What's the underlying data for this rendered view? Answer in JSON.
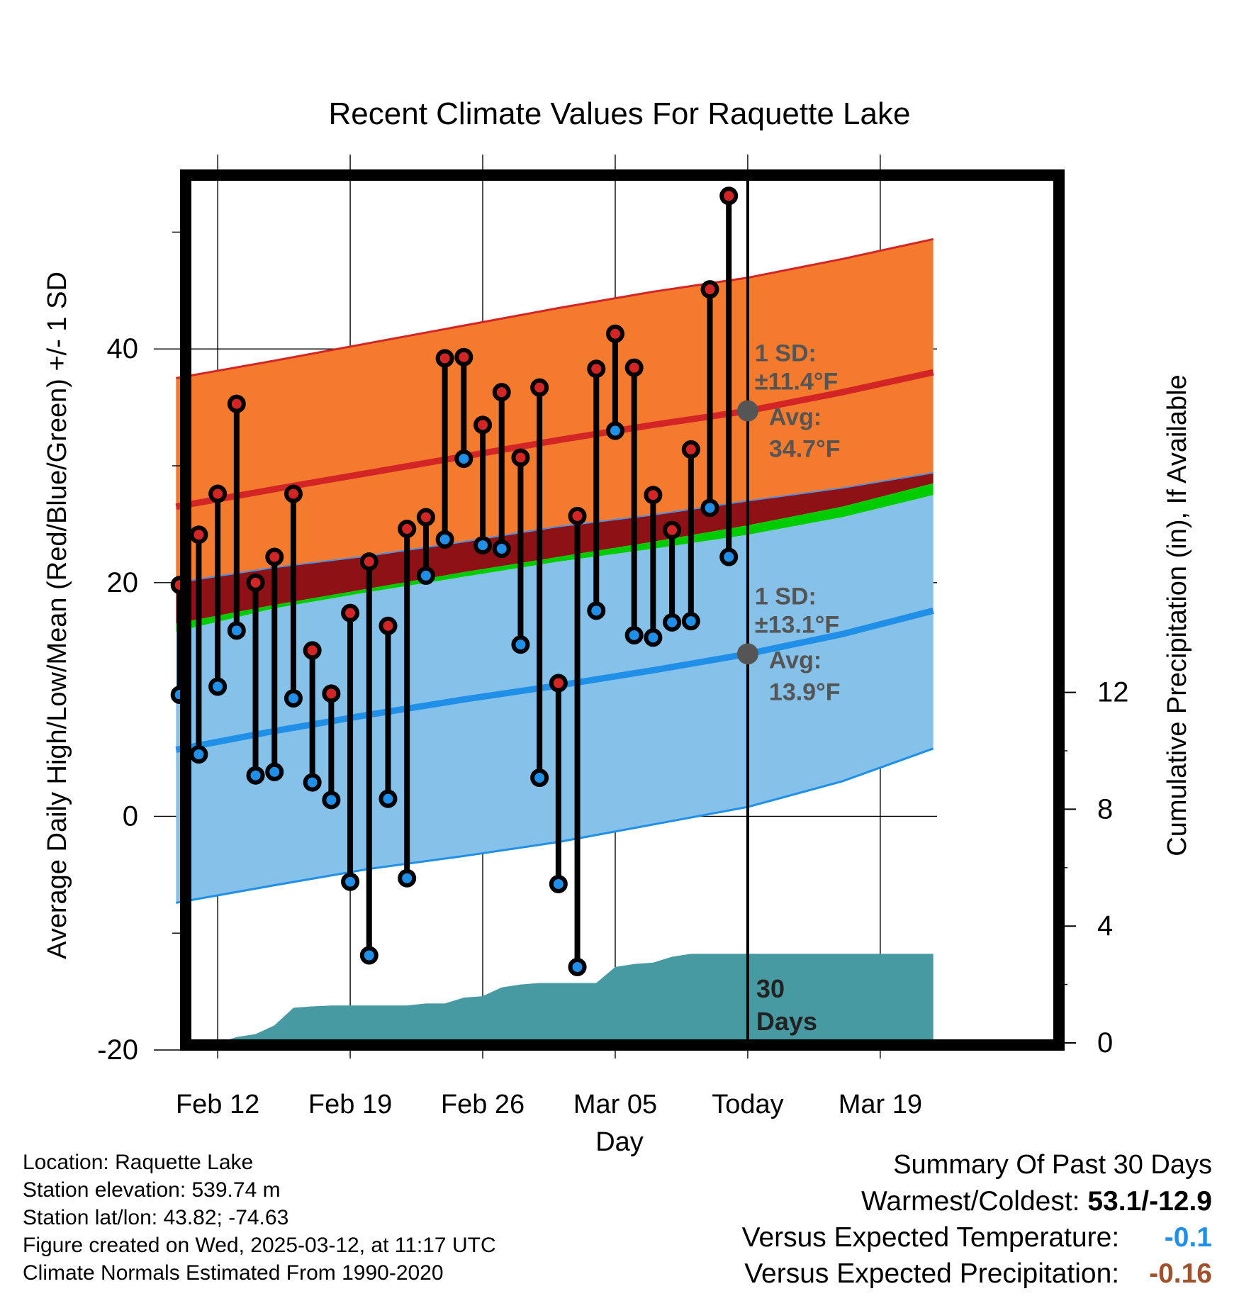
{
  "chart_data": {
    "type": "line",
    "title": "Recent Climate Values For Raquette Lake",
    "xlabel": "Day",
    "ylabel_left": "Average Daily High/Low/Mean (Red/Blue/Green) +/- 1 SD",
    "ylabel_right": "Cumulative Precipitation (in), If Available",
    "x_tick_labels": [
      "Feb 12",
      "Feb 19",
      "Feb 26",
      "Mar 05",
      "Today",
      "Mar 19"
    ],
    "x_tick_days": [
      2,
      9,
      16,
      23,
      30,
      37
    ],
    "xlim_days": [
      -1,
      40
    ],
    "ylim": [
      -20,
      55
    ],
    "yticks": [
      -20,
      0,
      20,
      40
    ],
    "y_tick_labels": [
      "-20",
      "0",
      "20",
      "40"
    ],
    "ylim_right": [
      0,
      30
    ],
    "yticks_right": [
      0,
      4,
      8,
      12
    ],
    "y_right_tick_labels": [
      "0",
      "4",
      "8",
      "12"
    ],
    "grid": true,
    "today_marker_label": "30\nDays",
    "normals": {
      "day": [
        -0.2,
        5,
        10,
        15,
        20,
        25,
        30,
        35,
        39.8
      ],
      "high_avg": [
        26.5,
        28.0,
        29.4,
        30.8,
        32.2,
        33.5,
        34.7,
        36.3,
        38.0
      ],
      "high_plus_sd": [
        37.5,
        39.0,
        40.5,
        42.0,
        43.5,
        44.9,
        46.1,
        47.7,
        49.4
      ],
      "high_minus_sd": [
        20.0,
        21.3,
        22.3,
        23.5,
        24.8,
        25.8,
        27.0,
        28.1,
        29.4
      ],
      "low_avg": [
        5.7,
        7.3,
        8.7,
        10.0,
        11.2,
        12.5,
        13.9,
        15.6,
        17.6
      ],
      "low_plus_sd": [
        15.8,
        17.8,
        19.2,
        20.5,
        21.8,
        22.9,
        24.1,
        25.6,
        27.5
      ],
      "low_minus_sd": [
        -7.4,
        -5.9,
        -4.5,
        -3.4,
        -2.2,
        -0.7,
        0.8,
        3.0,
        5.8
      ],
      "mean_avg": [
        16.5,
        18.1,
        19.5,
        20.9,
        22.2,
        23.5,
        24.9,
        26.5,
        28.5
      ],
      "mean_plus_sd": [
        20.0,
        21.3,
        22.3,
        23.5,
        24.8,
        25.8,
        27.0,
        28.1,
        29.4
      ],
      "mean_minus_sd": [
        15.8,
        17.8,
        19.2,
        20.5,
        21.8,
        22.9,
        24.1,
        25.6,
        27.5
      ]
    },
    "annotations": [
      {
        "sd_label": "1 SD:",
        "sd_value": "±11.4°F",
        "avg_label": "Avg:",
        "avg_value": "34.7°F",
        "day": 30,
        "value": 34.7
      },
      {
        "sd_label": "1 SD:",
        "sd_value": "±13.1°F",
        "avg_label": "Avg:",
        "avg_value": "13.9°F",
        "day": 30,
        "value": 13.9
      }
    ],
    "series": [
      {
        "name": "Daily High",
        "color": "#d42526",
        "days": [
          0,
          1,
          2,
          3,
          4,
          5,
          6,
          7,
          8,
          9,
          10,
          11,
          12,
          13,
          14,
          15,
          16,
          17,
          18,
          19,
          20,
          21,
          22,
          23,
          24,
          25,
          26,
          27,
          28,
          29
        ],
        "values": [
          19.8,
          24.1,
          27.6,
          35.3,
          20.0,
          22.2,
          27.6,
          14.2,
          10.5,
          17.4,
          21.8,
          16.3,
          24.6,
          25.6,
          39.2,
          39.3,
          33.5,
          36.3,
          30.7,
          36.7,
          11.4,
          25.7,
          38.3,
          41.3,
          38.4,
          27.5,
          24.5,
          31.4,
          45.1,
          53.1
        ]
      },
      {
        "name": "Daily Low",
        "color": "#1f8fe8",
        "days": [
          0,
          1,
          2,
          3,
          4,
          5,
          6,
          7,
          8,
          9,
          10,
          11,
          12,
          13,
          14,
          15,
          16,
          17,
          18,
          19,
          20,
          21,
          22,
          23,
          24,
          25,
          26,
          27,
          28,
          29
        ],
        "values": [
          10.4,
          5.3,
          11.1,
          15.9,
          3.5,
          3.8,
          10.1,
          2.9,
          1.4,
          -5.6,
          -11.9,
          1.5,
          -5.3,
          20.6,
          23.7,
          30.6,
          23.2,
          22.9,
          14.7,
          3.3,
          -5.8,
          -12.9,
          17.6,
          33.0,
          15.5,
          15.3,
          16.6,
          16.7,
          26.4,
          22.2
        ]
      },
      {
        "name": "Cumulative Precipitation",
        "days": [
          -0.2,
          0.5,
          1,
          2,
          3,
          4,
          5,
          6,
          7,
          8,
          9,
          10,
          11,
          12,
          13,
          14,
          15,
          16,
          17,
          18,
          19,
          20,
          21,
          22,
          23,
          24,
          25,
          26,
          27,
          28,
          29,
          30,
          39.8
        ],
        "values": [
          0,
          0,
          0,
          0,
          0.2,
          0.3,
          0.6,
          1.2,
          1.25,
          1.28,
          1.28,
          1.28,
          1.28,
          1.28,
          1.35,
          1.35,
          1.55,
          1.6,
          1.9,
          2.0,
          2.05,
          2.05,
          2.05,
          2.05,
          2.6,
          2.7,
          2.75,
          2.95,
          3.05,
          3.05,
          3.05,
          3.05,
          3.05
        ]
      }
    ]
  },
  "footer": {
    "location": "Location: Raquette Lake",
    "elevation": "Station elevation: 539.74 m",
    "latlon": "Station lat/lon: 43.82; -74.63",
    "created": "Figure created on Wed, 2025-03-12, at 11:17 UTC",
    "normals": "Climate Normals Estimated From 1990-2020"
  },
  "summary": {
    "heading": "Summary Of Past 30 Days",
    "warm_cold_label": "Warmest/Coldest:",
    "warm_cold_value": "53.1/-12.9",
    "temp_label": "Versus Expected Temperature:",
    "temp_value": "-0.1",
    "temp_color": "#1f8fe8",
    "precip_label": "Versus Expected Precipitation:",
    "precip_value": "-0.16",
    "precip_color": "#a0522d"
  }
}
